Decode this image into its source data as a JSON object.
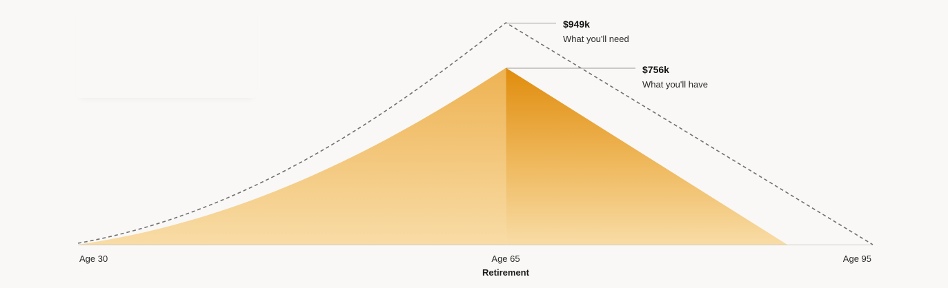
{
  "chart_data": {
    "type": "area",
    "title": "",
    "xlabel": "",
    "ylabel": "",
    "xlim": [
      30,
      95
    ],
    "ylim": [
      0,
      949
    ],
    "units": "$k",
    "retirement_age": 65,
    "x_ticks": [
      {
        "age": 30,
        "label": "Age 30"
      },
      {
        "age": 65,
        "label": "Age 65"
      },
      {
        "age": 95,
        "label": "Age 95"
      }
    ],
    "retirement_label": "Retirement",
    "series": [
      {
        "name": "What you'll need",
        "style": "dashed-line",
        "color": "#6f6f6f",
        "start_value": 0,
        "peak_age": 65,
        "peak_value": 949,
        "end_age": 95,
        "end_value": 0,
        "peak_label": "$949k"
      },
      {
        "name": "What you'll have",
        "style": "filled-area",
        "color_light": "#f7dca8",
        "color_mid": "#f0b85e",
        "color_dark": "#e08c0a",
        "start_value": 0,
        "peak_age": 65,
        "peak_value": 756,
        "end_age": 88,
        "end_value": 0,
        "peak_label": "$756k"
      }
    ]
  },
  "callouts": {
    "need": {
      "value": "$949k",
      "label": "What you'll need"
    },
    "have": {
      "value": "$756k",
      "label": "What you'll have"
    }
  }
}
